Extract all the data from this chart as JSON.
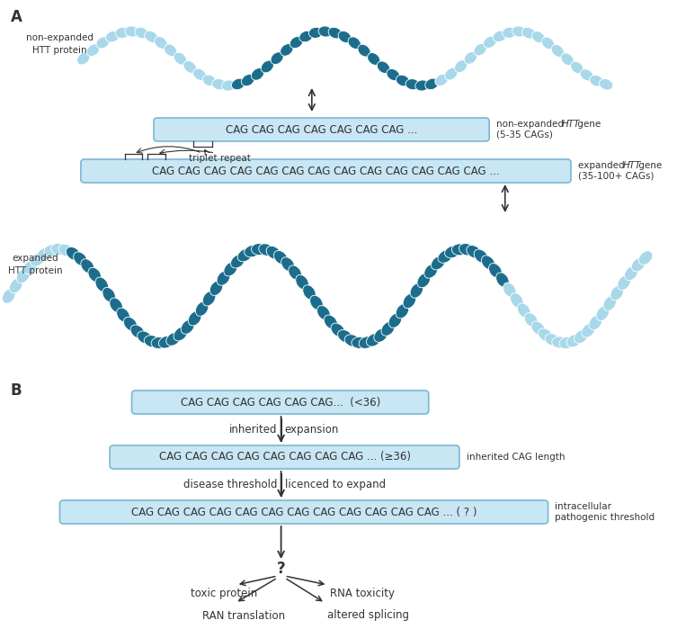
{
  "bg_color": "#ffffff",
  "light_blue": "#a8d8ea",
  "dark_blue": "#1c6d8c",
  "box_fill": "#c8e6f4",
  "box_edge": "#7ab8d4",
  "text_color": "#333333",
  "arrow_color": "#333333",
  "panel_A_label": "A",
  "panel_B_label": "B",
  "box1_text": "CAG CAG CAG CAG CAG CAG CAG ...",
  "box1_side_normal": "non-expanded ",
  "box1_side_italic": "HTT",
  "box1_side_normal2": " gene",
  "box1_side2": "(5-35 CAGs)",
  "box2_text": "CAG CAG CAG CAG CAG CAG CAG CAG CAG CAG CAG CAG CAG ...",
  "box2_side_normal": "expanded ",
  "box2_side_italic": "HTT",
  "box2_side_normal2": " gene",
  "box2_side2": "(35-100+ CAGs)",
  "triplet_label": "triplet repeat",
  "label_non_exp_protein": "non-expanded\nHTT protein",
  "label_exp_protein": "expanded\nHTT protein",
  "boxB1_text": "CAG CAG CAG CAG CAG CAG...  (<36)",
  "boxB2_text": "CAG CAG CAG CAG CAG CAG CAG CAG ... (≥36)",
  "boxB2_side": "inherited CAG length",
  "boxB3_text": "CAG CAG CAG CAG CAG CAG CAG CAG CAG CAG CAG CAG ... ( ? )",
  "boxB3_side1": "intracellular",
  "boxB3_side2": "pathogenic threshold",
  "label_inherited": "inherited",
  "label_expansion": "expansion",
  "label_disease_thresh": "disease threshold",
  "label_licenced": "licenced to expand",
  "label_question": "?",
  "label_toxic": "toxic protein",
  "label_RNA": "RNA toxicity",
  "label_RAN": "RAN translation",
  "label_splicing": "altered splicing"
}
